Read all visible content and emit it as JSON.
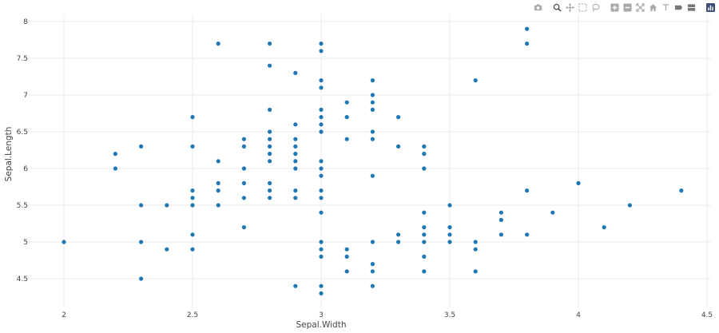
{
  "chart_data": {
    "type": "scatter",
    "xlabel": "Sepal.Width",
    "ylabel": "Sepal.Length",
    "xlim": [
      1.7,
      4.5
    ],
    "ylim": [
      4.2,
      8.2
    ],
    "xticks": [
      "2",
      "2.5",
      "3",
      "3.5",
      "4",
      "4.5"
    ],
    "yticks": [
      "4.5",
      "5",
      "5.5",
      "6",
      "6.5",
      "7",
      "7.5",
      "8"
    ],
    "grid": true,
    "marker_color": "#1f77b4",
    "points": [
      {
        "x": 2.0,
        "y": 5.0
      },
      {
        "x": 2.2,
        "y": 6.2
      },
      {
        "x": 2.2,
        "y": 6.0
      },
      {
        "x": 2.3,
        "y": 6.3
      },
      {
        "x": 2.3,
        "y": 5.5
      },
      {
        "x": 2.3,
        "y": 5.0
      },
      {
        "x": 2.3,
        "y": 4.5
      },
      {
        "x": 2.4,
        "y": 5.5
      },
      {
        "x": 2.4,
        "y": 4.9
      },
      {
        "x": 2.5,
        "y": 6.7
      },
      {
        "x": 2.5,
        "y": 6.3
      },
      {
        "x": 2.5,
        "y": 5.7
      },
      {
        "x": 2.5,
        "y": 5.6
      },
      {
        "x": 2.5,
        "y": 5.5
      },
      {
        "x": 2.5,
        "y": 5.1
      },
      {
        "x": 2.5,
        "y": 4.9
      },
      {
        "x": 2.6,
        "y": 7.7
      },
      {
        "x": 2.6,
        "y": 6.1
      },
      {
        "x": 2.6,
        "y": 5.8
      },
      {
        "x": 2.6,
        "y": 5.7
      },
      {
        "x": 2.6,
        "y": 5.5
      },
      {
        "x": 2.7,
        "y": 6.4
      },
      {
        "x": 2.7,
        "y": 6.3
      },
      {
        "x": 2.7,
        "y": 6.0
      },
      {
        "x": 2.7,
        "y": 5.8
      },
      {
        "x": 2.7,
        "y": 5.6
      },
      {
        "x": 2.7,
        "y": 5.2
      },
      {
        "x": 2.8,
        "y": 7.7
      },
      {
        "x": 2.8,
        "y": 7.4
      },
      {
        "x": 2.8,
        "y": 6.8
      },
      {
        "x": 2.8,
        "y": 6.5
      },
      {
        "x": 2.8,
        "y": 6.4
      },
      {
        "x": 2.8,
        "y": 6.3
      },
      {
        "x": 2.8,
        "y": 6.2
      },
      {
        "x": 2.8,
        "y": 6.1
      },
      {
        "x": 2.8,
        "y": 5.8
      },
      {
        "x": 2.8,
        "y": 5.7
      },
      {
        "x": 2.8,
        "y": 5.6
      },
      {
        "x": 2.9,
        "y": 7.3
      },
      {
        "x": 2.9,
        "y": 6.6
      },
      {
        "x": 2.9,
        "y": 6.4
      },
      {
        "x": 2.9,
        "y": 6.3
      },
      {
        "x": 2.9,
        "y": 6.2
      },
      {
        "x": 2.9,
        "y": 6.1
      },
      {
        "x": 2.9,
        "y": 6.0
      },
      {
        "x": 2.9,
        "y": 5.7
      },
      {
        "x": 2.9,
        "y": 5.6
      },
      {
        "x": 2.9,
        "y": 4.4
      },
      {
        "x": 3.0,
        "y": 7.7
      },
      {
        "x": 3.0,
        "y": 7.6
      },
      {
        "x": 3.0,
        "y": 7.2
      },
      {
        "x": 3.0,
        "y": 7.1
      },
      {
        "x": 3.0,
        "y": 6.8
      },
      {
        "x": 3.0,
        "y": 6.7
      },
      {
        "x": 3.0,
        "y": 6.6
      },
      {
        "x": 3.0,
        "y": 6.5
      },
      {
        "x": 3.0,
        "y": 6.1
      },
      {
        "x": 3.0,
        "y": 6.0
      },
      {
        "x": 3.0,
        "y": 5.9
      },
      {
        "x": 3.0,
        "y": 5.7
      },
      {
        "x": 3.0,
        "y": 5.6
      },
      {
        "x": 3.0,
        "y": 5.4
      },
      {
        "x": 3.0,
        "y": 5.0
      },
      {
        "x": 3.0,
        "y": 4.9
      },
      {
        "x": 3.0,
        "y": 4.8
      },
      {
        "x": 3.0,
        "y": 4.4
      },
      {
        "x": 3.0,
        "y": 4.3
      },
      {
        "x": 3.1,
        "y": 6.9
      },
      {
        "x": 3.1,
        "y": 6.7
      },
      {
        "x": 3.1,
        "y": 6.4
      },
      {
        "x": 3.1,
        "y": 4.9
      },
      {
        "x": 3.1,
        "y": 4.8
      },
      {
        "x": 3.1,
        "y": 4.6
      },
      {
        "x": 3.2,
        "y": 7.2
      },
      {
        "x": 3.2,
        "y": 7.0
      },
      {
        "x": 3.2,
        "y": 6.9
      },
      {
        "x": 3.2,
        "y": 6.8
      },
      {
        "x": 3.2,
        "y": 6.5
      },
      {
        "x": 3.2,
        "y": 6.4
      },
      {
        "x": 3.2,
        "y": 5.9
      },
      {
        "x": 3.2,
        "y": 5.0
      },
      {
        "x": 3.2,
        "y": 4.7
      },
      {
        "x": 3.2,
        "y": 4.6
      },
      {
        "x": 3.2,
        "y": 4.4
      },
      {
        "x": 3.3,
        "y": 6.7
      },
      {
        "x": 3.3,
        "y": 6.3
      },
      {
        "x": 3.3,
        "y": 5.1
      },
      {
        "x": 3.3,
        "y": 5.0
      },
      {
        "x": 3.4,
        "y": 6.3
      },
      {
        "x": 3.4,
        "y": 6.2
      },
      {
        "x": 3.4,
        "y": 6.0
      },
      {
        "x": 3.4,
        "y": 5.4
      },
      {
        "x": 3.4,
        "y": 5.2
      },
      {
        "x": 3.4,
        "y": 5.1
      },
      {
        "x": 3.4,
        "y": 5.0
      },
      {
        "x": 3.4,
        "y": 4.8
      },
      {
        "x": 3.4,
        "y": 4.6
      },
      {
        "x": 3.5,
        "y": 5.5
      },
      {
        "x": 3.5,
        "y": 5.2
      },
      {
        "x": 3.5,
        "y": 5.1
      },
      {
        "x": 3.5,
        "y": 5.0
      },
      {
        "x": 3.6,
        "y": 7.2
      },
      {
        "x": 3.6,
        "y": 5.0
      },
      {
        "x": 3.6,
        "y": 4.9
      },
      {
        "x": 3.6,
        "y": 4.6
      },
      {
        "x": 3.7,
        "y": 5.4
      },
      {
        "x": 3.7,
        "y": 5.3
      },
      {
        "x": 3.7,
        "y": 5.1
      },
      {
        "x": 3.8,
        "y": 7.9
      },
      {
        "x": 3.8,
        "y": 7.7
      },
      {
        "x": 3.8,
        "y": 5.7
      },
      {
        "x": 3.8,
        "y": 5.1
      },
      {
        "x": 3.9,
        "y": 5.4
      },
      {
        "x": 4.0,
        "y": 5.8
      },
      {
        "x": 4.1,
        "y": 5.2
      },
      {
        "x": 4.2,
        "y": 5.5
      },
      {
        "x": 4.4,
        "y": 5.7
      }
    ]
  },
  "modebar": {
    "buttons": [
      {
        "icon": "camera-icon"
      },
      {
        "icon": "zoom-icon"
      },
      {
        "icon": "pan-icon"
      },
      {
        "icon": "box-select-icon"
      },
      {
        "icon": "lasso-icon"
      },
      {
        "icon": "zoom-in-icon"
      },
      {
        "icon": "zoom-out-icon"
      },
      {
        "icon": "autoscale-icon"
      },
      {
        "icon": "home-icon"
      },
      {
        "icon": "spike-lines-icon"
      },
      {
        "icon": "hover-closest-icon"
      },
      {
        "icon": "hover-compare-icon"
      },
      {
        "icon": "plotly-logo-icon"
      }
    ]
  }
}
